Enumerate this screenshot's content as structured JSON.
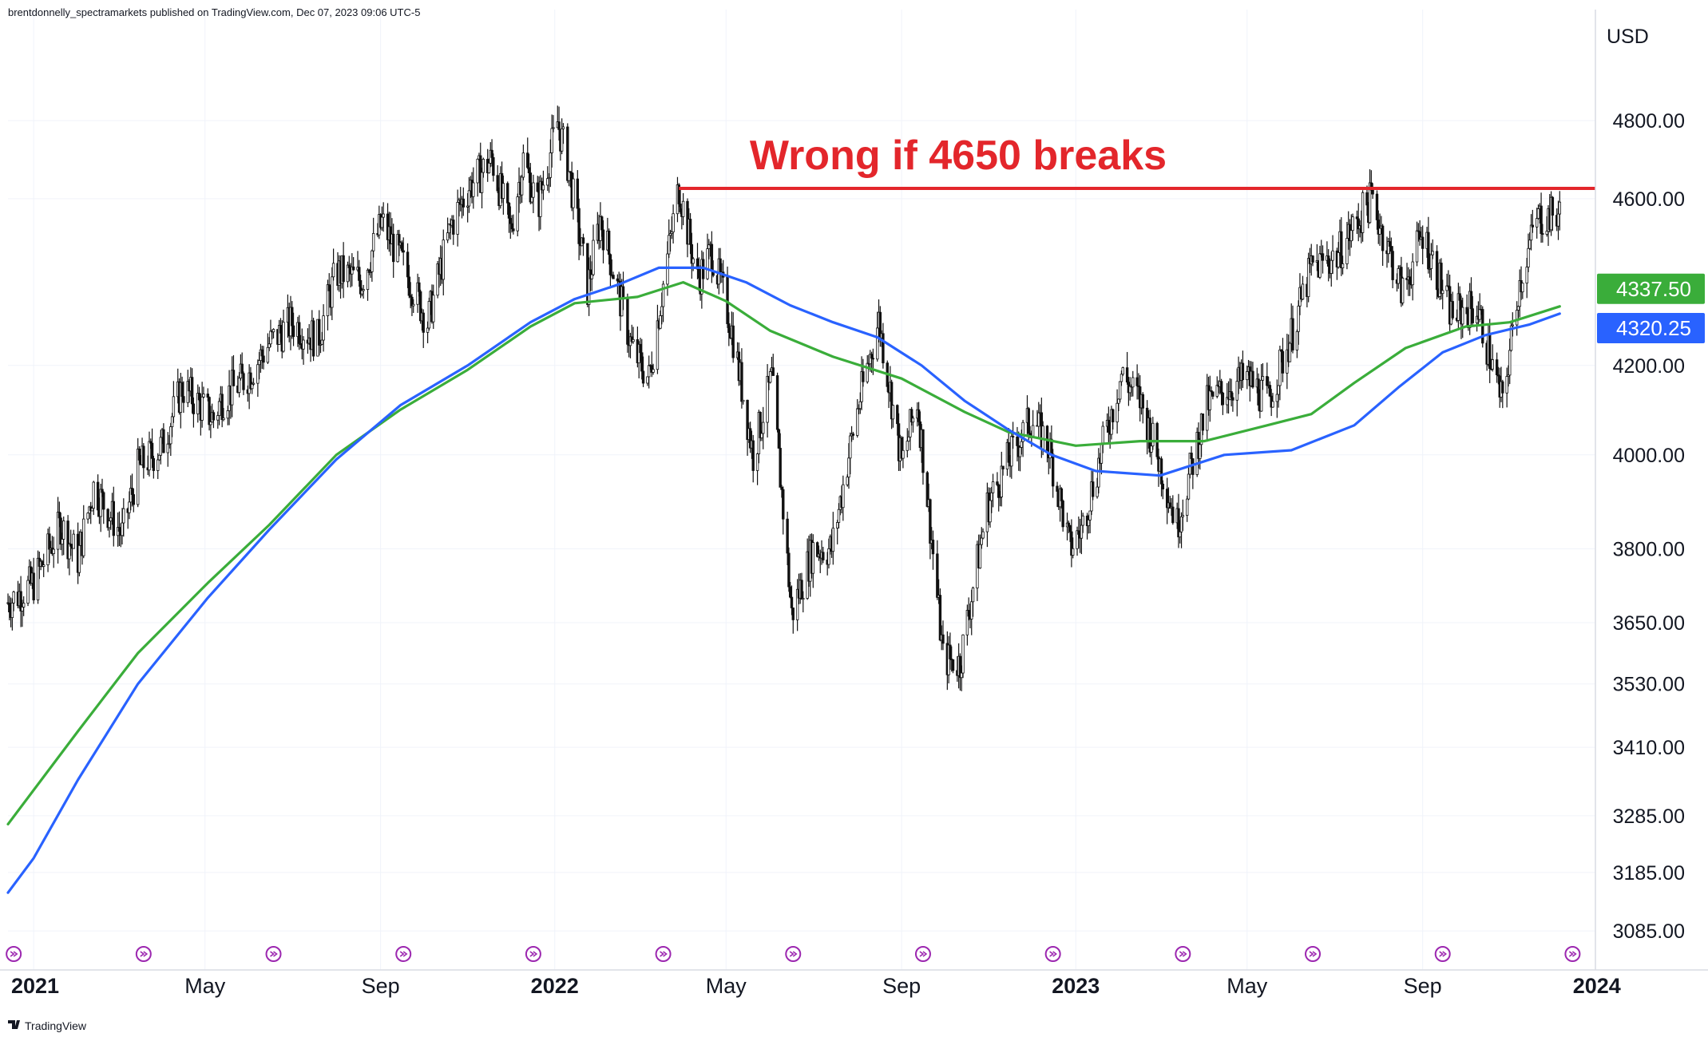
{
  "header": {
    "published_by": "brentdonnelly_spectramarkets published on TradingView.com, Dec 07, 2023 09:06 UTC-5"
  },
  "footer": {
    "brand": "TradingView"
  },
  "icons": {
    "brand_logo": "tradingview-logo-icon",
    "event_marker": "dividend-marker-icon"
  },
  "colors": {
    "candles": "#111111",
    "ma_green": "#3aad3a",
    "ma_blue": "#2962ff",
    "resistance": "#e3262b",
    "label_green_bg": "#3aad3a",
    "label_blue_bg": "#2962ff",
    "event_icon": "#9c27b0"
  },
  "chart_data": {
    "type": "line",
    "title": "",
    "annotation": "Wrong if 4650 breaks",
    "currency": "USD",
    "y_scale": "log",
    "ylim": [
      3020,
      5100
    ],
    "x_range": [
      "2020-12-14",
      "2023-12-31"
    ],
    "y_ticks": [
      "4800.00",
      "4600.00",
      "4200.00",
      "4000.00",
      "3800.00",
      "3650.00",
      "3530.00",
      "3410.00",
      "3285.00",
      "3185.00",
      "3085.00"
    ],
    "y_tick_values": [
      4800,
      4600,
      4200,
      4000,
      3800,
      3650,
      3530,
      3410,
      3285,
      3185,
      3085
    ],
    "x_ticks": [
      {
        "label": "2021",
        "date": "2021-01-01",
        "bold": true
      },
      {
        "label": "May",
        "date": "2021-05-01",
        "bold": false
      },
      {
        "label": "Sep",
        "date": "2021-09-01",
        "bold": false
      },
      {
        "label": "2022",
        "date": "2022-01-01",
        "bold": true
      },
      {
        "label": "May",
        "date": "2022-05-01",
        "bold": false
      },
      {
        "label": "Sep",
        "date": "2022-09-01",
        "bold": false
      },
      {
        "label": "2023",
        "date": "2023-01-01",
        "bold": true
      },
      {
        "label": "May",
        "date": "2023-05-01",
        "bold": false
      },
      {
        "label": "Sep",
        "date": "2023-09-01",
        "bold": false
      },
      {
        "label": "2024",
        "date": "2024-01-01",
        "bold": true
      }
    ],
    "price_labels": [
      {
        "text": "4337.50",
        "value": 4337.5,
        "series": "green"
      },
      {
        "text": "4320.25",
        "value": 4320.25,
        "series": "blue"
      }
    ],
    "resistance_line": {
      "value": 4626,
      "x_start": "2022-03-29",
      "x_end": "2023-12-31"
    },
    "event_markers": [
      "2020-12-18",
      "2021-03-19",
      "2021-06-18",
      "2021-09-17",
      "2021-12-17",
      "2022-03-18",
      "2022-06-17",
      "2022-09-16",
      "2022-12-16",
      "2023-03-17",
      "2023-06-16",
      "2023-09-15",
      "2023-12-15"
    ],
    "series": [
      {
        "role": "price",
        "x": [
          "2020-12-14",
          "2021-01-01",
          "2021-01-20",
          "2021-02-01",
          "2021-02-12",
          "2021-03-04",
          "2021-03-15",
          "2021-04-01",
          "2021-04-15",
          "2021-05-07",
          "2021-05-12",
          "2021-06-01",
          "2021-06-15",
          "2021-07-01",
          "2021-07-19",
          "2021-08-01",
          "2021-08-19",
          "2021-09-02",
          "2021-09-15",
          "2021-10-04",
          "2021-10-21",
          "2021-11-02",
          "2021-11-18",
          "2021-12-01",
          "2021-12-10",
          "2021-12-20",
          "2022-01-03",
          "2022-01-10",
          "2022-01-24",
          "2022-02-02",
          "2022-02-24",
          "2022-03-08",
          "2022-03-29",
          "2022-04-11",
          "2022-04-21",
          "2022-05-04",
          "2022-05-20",
          "2022-06-02",
          "2022-06-16",
          "2022-07-01",
          "2022-07-14",
          "2022-08-01",
          "2022-08-16",
          "2022-09-01",
          "2022-09-12",
          "2022-09-30",
          "2022-10-12",
          "2022-10-31",
          "2022-11-15",
          "2022-12-01",
          "2022-12-13",
          "2022-12-28",
          "2023-01-05",
          "2023-01-18",
          "2023-02-02",
          "2023-02-15",
          "2023-03-01",
          "2023-03-13",
          "2023-04-03",
          "2023-04-18",
          "2023-05-01",
          "2023-05-16",
          "2023-06-01",
          "2023-06-15",
          "2023-07-03",
          "2023-07-27",
          "2023-08-18",
          "2023-09-01",
          "2023-09-21",
          "2023-10-09",
          "2023-10-27",
          "2023-11-07",
          "2023-11-20",
          "2023-12-06"
        ],
        "y": [
          3690,
          3730,
          3850,
          3780,
          3930,
          3830,
          3970,
          4020,
          4150,
          4080,
          4120,
          4180,
          4250,
          4300,
          4260,
          4420,
          4400,
          4540,
          4450,
          4300,
          4540,
          4630,
          4700,
          4520,
          4700,
          4580,
          4796,
          4690,
          4380,
          4550,
          4240,
          4170,
          4630,
          4400,
          4470,
          4300,
          4000,
          4170,
          3666,
          3800,
          3800,
          4100,
          4305,
          3980,
          4120,
          3580,
          3570,
          3890,
          3990,
          4080,
          4020,
          3800,
          3840,
          3995,
          4180,
          4120,
          3980,
          3850,
          4110,
          4150,
          4170,
          4120,
          4270,
          4430,
          4460,
          4600,
          4370,
          4515,
          4320,
          4335,
          4110,
          4380,
          4550,
          4560
        ]
      },
      {
        "role": "moving_average",
        "color_key": "ma_green",
        "x": [
          "2020-12-14",
          "2021-02-01",
          "2021-03-15",
          "2021-05-03",
          "2021-06-15",
          "2021-08-01",
          "2021-09-15",
          "2021-11-01",
          "2021-12-15",
          "2022-01-15",
          "2022-02-28",
          "2022-04-01",
          "2022-05-01",
          "2022-06-01",
          "2022-07-15",
          "2022-09-01",
          "2022-10-15",
          "2022-11-15",
          "2023-01-01",
          "2023-02-15",
          "2023-04-01",
          "2023-05-15",
          "2023-06-15",
          "2023-07-15",
          "2023-08-20",
          "2023-10-01",
          "2023-11-01",
          "2023-12-06"
        ],
        "y": [
          3270,
          3440,
          3590,
          3730,
          3850,
          4000,
          4100,
          4190,
          4290,
          4345,
          4360,
          4395,
          4350,
          4280,
          4220,
          4170,
          4095,
          4050,
          4020,
          4030,
          4030,
          4065,
          4090,
          4160,
          4240,
          4290,
          4300,
          4337.5
        ]
      },
      {
        "role": "moving_average",
        "color_key": "ma_blue",
        "x": [
          "2020-12-14",
          "2021-01-01",
          "2021-02-01",
          "2021-03-15",
          "2021-05-03",
          "2021-06-15",
          "2021-08-01",
          "2021-09-15",
          "2021-11-01",
          "2021-12-15",
          "2022-01-15",
          "2022-02-15",
          "2022-03-15",
          "2022-04-15",
          "2022-05-15",
          "2022-06-15",
          "2022-07-15",
          "2022-08-15",
          "2022-09-15",
          "2022-10-15",
          "2022-11-15",
          "2022-12-15",
          "2023-01-15",
          "2023-03-01",
          "2023-04-15",
          "2023-06-01",
          "2023-07-15",
          "2023-08-15",
          "2023-09-15",
          "2023-10-15",
          "2023-11-15",
          "2023-12-06"
        ],
        "y": [
          3150,
          3210,
          3350,
          3530,
          3700,
          3840,
          3990,
          4110,
          4200,
          4300,
          4355,
          4390,
          4430,
          4430,
          4395,
          4340,
          4300,
          4265,
          4200,
          4120,
          4055,
          4000,
          3965,
          3955,
          4000,
          4010,
          4065,
          4150,
          4230,
          4270,
          4295,
          4320.25
        ]
      }
    ]
  }
}
